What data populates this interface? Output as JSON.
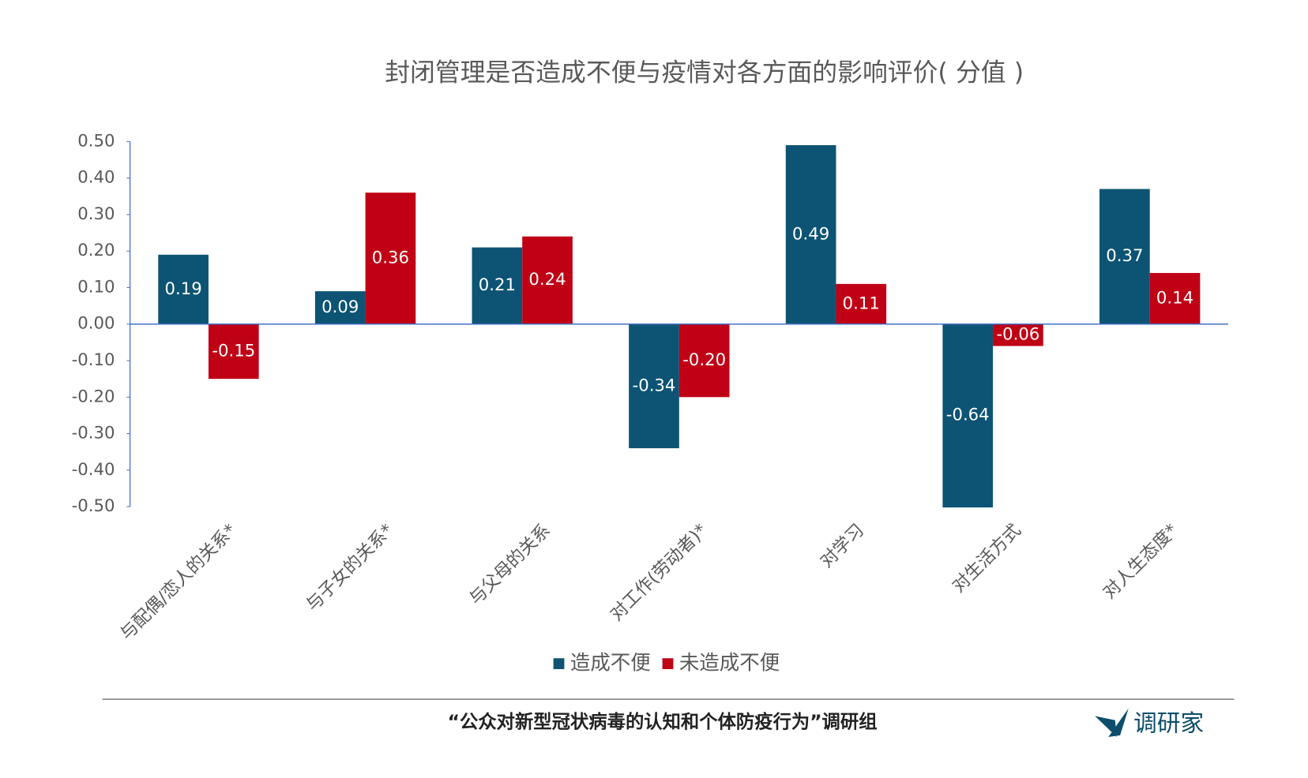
{
  "chart_data": {
    "type": "bar",
    "title": "封闭管理是否造成不便与疫情对各方面的影响评价( 分值 )",
    "categories": [
      "与配偶/恋人的关系*",
      "与子女的关系*",
      "与父母的关系",
      "对工作(劳动者)*",
      "对学习",
      "对生活方式",
      "对人生态度*"
    ],
    "series": [
      {
        "name": "造成不便",
        "color": "#0d5474",
        "values": [
          0.19,
          0.09,
          0.21,
          -0.34,
          0.49,
          -0.64,
          0.37
        ],
        "value_labels": [
          "0.19",
          "0.09",
          "0.21",
          "-0.34",
          "0.49",
          "-0.64",
          "0.37"
        ]
      },
      {
        "name": "未造成不便",
        "color": "#c00015",
        "values": [
          -0.15,
          0.36,
          0.24,
          -0.2,
          0.11,
          -0.06,
          0.14
        ],
        "value_labels": [
          "-0.15",
          "0.36",
          "0.24",
          "-0.20",
          "0.11",
          "-0.06",
          "0.14"
        ]
      }
    ],
    "ylim": [
      -0.5,
      0.5
    ],
    "yticks": [
      {
        "value": -0.5,
        "label": "-0.50"
      },
      {
        "value": -0.4,
        "label": "-0.40"
      },
      {
        "value": -0.3,
        "label": "-0.30"
      },
      {
        "value": -0.2,
        "label": "-0.20"
      },
      {
        "value": -0.1,
        "label": "-0.10"
      },
      {
        "value": 0,
        "label": "0.00"
      },
      {
        "value": 0.1,
        "label": "0.10"
      },
      {
        "value": 0.2,
        "label": "0.20"
      },
      {
        "value": 0.3,
        "label": "0.30"
      },
      {
        "value": 0.4,
        "label": "0.40"
      },
      {
        "value": 0.5,
        "label": "0.50"
      }
    ],
    "legend": "bottom"
  },
  "footer": {
    "source": "“公众对新型冠状病毒的认知和个体防疫行为”调研组",
    "logo": "调研家"
  }
}
